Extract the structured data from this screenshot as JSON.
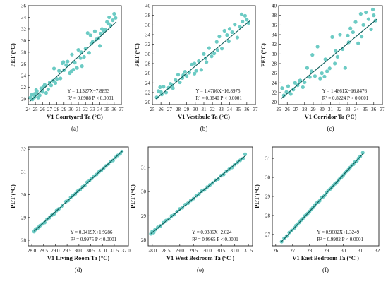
{
  "figure": {
    "colors": {
      "point": "#6ccbc4",
      "line": "#0c5a57",
      "frame": "#222222",
      "text": "#111111"
    }
  },
  "chart_data": [
    {
      "type": "scatter",
      "caption": "(a)",
      "xlabel": "V1 Courtyard Ta (°C)",
      "ylabel": "PET (°C)",
      "xticks": [
        24,
        25,
        26,
        27,
        28,
        29,
        30,
        31,
        32,
        33,
        34,
        35,
        36,
        37
      ],
      "yticks": [
        20,
        22,
        24,
        26,
        28,
        30,
        32,
        34,
        36
      ],
      "xlim": [
        24,
        37
      ],
      "ylim": [
        19,
        36
      ],
      "fit": {
        "slope": 1.1327,
        "intercept": -7.8853,
        "x_range": [
          24.2,
          36.3
        ]
      },
      "equation": "Y = 1.1327X−7.8853",
      "stats": "R² = 0.8988 P < 0.0001",
      "legend_position": "bottom-right",
      "x": [
        24.3,
        24.5,
        24.6,
        24.8,
        24.9,
        25.0,
        25.2,
        25.4,
        25.6,
        25.8,
        26.0,
        26.2,
        26.5,
        26.8,
        27.0,
        27.2,
        27.5,
        27.8,
        28.0,
        28.3,
        28.5,
        28.8,
        29.0,
        29.3,
        29.5,
        29.8,
        30.0,
        30.3,
        30.5,
        30.8,
        31.0,
        31.3,
        31.5,
        31.8,
        32.0,
        32.3,
        32.5,
        32.8,
        33.0,
        33.3,
        33.5,
        33.8,
        34.0,
        34.3,
        34.5,
        34.8,
        35.0,
        35.3,
        35.5,
        35.8,
        36.0,
        36.2,
        25.1,
        26.3,
        27.6,
        28.9,
        30.1,
        31.4,
        32.7,
        34.1,
        35.2
      ],
      "y": [
        20.2,
        20.7,
        19.9,
        20.8,
        20.3,
        20.9,
        21.3,
        20.2,
        20.6,
        21.8,
        21.2,
        22.1,
        21.0,
        21.6,
        22.8,
        22.3,
        23.1,
        22.7,
        23.4,
        24.8,
        23.5,
        26.1,
        24.9,
        25.8,
        26.4,
        24.4,
        24.7,
        25.0,
        26.2,
        25.3,
        28.4,
        27.0,
        25.6,
        27.2,
        28.6,
        31.3,
        27.9,
        29.5,
        29.8,
        31.6,
        30.2,
        30.4,
        29.1,
        32.0,
        31.7,
        31.9,
        33.2,
        34.0,
        32.6,
        33.5,
        34.6,
        33.9,
        21.5,
        22.4,
        25.2,
        26.3,
        27.6,
        28.0,
        30.9,
        31.2,
        32.9
      ]
    },
    {
      "type": "scatter",
      "caption": "(b)",
      "xlabel": "V1 Vestibule Ta (°C)",
      "ylabel": "PET (°C)",
      "xticks": [
        25,
        26,
        27,
        28,
        29,
        30,
        31,
        32,
        33,
        34,
        35,
        36,
        37
      ],
      "yticks": [
        20,
        22,
        24,
        26,
        28,
        30,
        32,
        34,
        36,
        38,
        40
      ],
      "xlim": [
        25,
        37
      ],
      "ylim": [
        19.5,
        40
      ],
      "fit": {
        "slope": 1.4786,
        "intercept": -16.8975,
        "x_range": [
          25.4,
          36.4
        ]
      },
      "equation": "Y = 1.4786X−16.8975",
      "stats": "R² = 0.8840 P < 0.0001",
      "legend_position": "bottom-right",
      "x": [
        25.5,
        25.7,
        25.9,
        26.1,
        26.3,
        26.6,
        26.9,
        27.1,
        27.4,
        27.7,
        28.0,
        28.2,
        28.5,
        28.8,
        29.0,
        29.3,
        29.6,
        29.9,
        30.1,
        30.4,
        30.7,
        31.0,
        31.3,
        31.6,
        31.9,
        32.2,
        32.5,
        32.8,
        33.1,
        33.4,
        33.7,
        34.0,
        34.3,
        34.6,
        34.9,
        35.2,
        35.5,
        35.8,
        36.0,
        36.2,
        26.0,
        27.3,
        28.6,
        29.9,
        31.2,
        32.6,
        33.9,
        35.4
      ],
      "y": [
        21.0,
        22.3,
        23.1,
        21.6,
        23.2,
        22.0,
        23.0,
        23.8,
        22.9,
        24.6,
        25.7,
        24.1,
        25.0,
        26.3,
        25.4,
        26.1,
        27.8,
        25.9,
        26.5,
        28.5,
        26.7,
        30.0,
        28.3,
        31.2,
        29.5,
        30.1,
        32.5,
        33.6,
        31.1,
        34.8,
        33.9,
        35.2,
        34.5,
        36.1,
        33.4,
        35.6,
        36.7,
        37.9,
        37.1,
        36.4,
        22.1,
        23.5,
        25.6,
        28.0,
        29.1,
        30.8,
        32.6,
        38.2
      ]
    },
    {
      "type": "scatter",
      "caption": "(c)",
      "xlabel": "V1 Corridor Ta (°C)",
      "ylabel": "PET (°C)",
      "xticks": [
        25,
        26,
        27,
        28,
        29,
        30,
        31,
        32,
        33,
        34,
        35,
        36,
        37
      ],
      "yticks": [
        20,
        22,
        24,
        26,
        28,
        30,
        32,
        34,
        36,
        38,
        40
      ],
      "xlim": [
        25,
        37
      ],
      "ylim": [
        19.5,
        40
      ],
      "fit": {
        "slope": 1.4861,
        "intercept": -16.8476,
        "x_range": [
          25.3,
          36.4
        ]
      },
      "equation": "Y = 1.4861X−16.8476",
      "stats": "R² = 0.8224 P < 0.0001",
      "legend_position": "bottom-right",
      "x": [
        25.4,
        25.6,
        25.9,
        26.1,
        26.4,
        26.7,
        26.9,
        27.2,
        27.5,
        27.8,
        28.0,
        28.3,
        28.6,
        28.9,
        29.2,
        29.5,
        29.8,
        30.0,
        30.3,
        30.6,
        30.9,
        31.2,
        31.5,
        31.8,
        32.1,
        32.4,
        32.7,
        33.0,
        33.3,
        33.6,
        33.9,
        34.2,
        34.5,
        34.8,
        35.1,
        35.4,
        35.7,
        36.0,
        36.2,
        26.3,
        27.4,
        28.8,
        30.4,
        31.6,
        33.1,
        34.6,
        35.9
      ],
      "y": [
        22.9,
        21.4,
        22.1,
        23.3,
        21.7,
        22.6,
        24.0,
        23.5,
        24.5,
        23.1,
        24.1,
        27.1,
        25.2,
        29.8,
        25.4,
        31.5,
        24.9,
        26.0,
        25.3,
        26.4,
        27.0,
        33.5,
        28.0,
        29.4,
        34.0,
        31.0,
        27.1,
        33.8,
        35.3,
        34.5,
        36.6,
        32.2,
        38.3,
        36.0,
        38.6,
        37.2,
        35.1,
        38.0,
        36.9,
        21.9,
        24.4,
        26.4,
        28.9,
        30.6,
        32.4,
        33.6,
        39.2
      ]
    },
    {
      "type": "scatter",
      "caption": "(d)",
      "xlabel": "V1 Living Room Ta (°C)",
      "ylabel": "PET (°C)",
      "xticks": [
        28.0,
        28.5,
        29.0,
        29.5,
        30.0,
        30.5,
        31.0,
        31.5,
        32.0
      ],
      "yticks": [
        28,
        29,
        30,
        31,
        32
      ],
      "xlim": [
        27.85,
        32.1
      ],
      "ylim": [
        27.75,
        32.1
      ],
      "fit": {
        "slope": 0.9419,
        "intercept": 1.9286,
        "x_range": [
          28.1,
          31.85
        ]
      },
      "equation": "Y = 0.9419X+1.9286",
      "stats": "R² = 0.9975 P < 0.0001",
      "legend_position": "bottom-right",
      "x": [
        28.1,
        28.15,
        28.2,
        28.25,
        28.3,
        28.35,
        28.45,
        28.55,
        28.65,
        28.75,
        28.85,
        28.95,
        29.05,
        29.15,
        29.3,
        29.45,
        29.55,
        29.65,
        29.75,
        29.85,
        29.95,
        30.05,
        30.15,
        30.25,
        30.35,
        30.45,
        30.55,
        30.65,
        30.75,
        30.85,
        30.95,
        31.05,
        31.15,
        31.25,
        31.35,
        31.45,
        31.55,
        31.65,
        31.75,
        31.82
      ],
      "y": [
        28.38,
        28.46,
        28.5,
        28.53,
        28.58,
        28.64,
        28.72,
        28.78,
        28.92,
        28.99,
        29.1,
        29.16,
        29.3,
        29.38,
        29.51,
        29.7,
        29.75,
        29.88,
        29.97,
        30.04,
        30.16,
        30.22,
        30.34,
        30.41,
        30.55,
        30.63,
        30.72,
        30.82,
        30.89,
        31.0,
        31.07,
        31.17,
        31.27,
        31.35,
        31.46,
        31.51,
        31.64,
        31.73,
        31.8,
        31.9
      ]
    },
    {
      "type": "scatter",
      "caption": "(e)",
      "xlabel": "V1 West Bedroom Ta (°C )",
      "ylabel": "PET (°C)",
      "xticks": [
        28.0,
        28.5,
        29.0,
        29.5,
        30.0,
        30.5,
        31.0,
        31.5
      ],
      "yticks": [
        28,
        29,
        30,
        31
      ],
      "xlim": [
        27.85,
        31.65
      ],
      "ylim": [
        27.75,
        31.85
      ],
      "fit": {
        "slope": 0.9386,
        "intercept": 2.024,
        "x_range": [
          27.95,
          31.4
        ]
      },
      "equation": "Y = 0.9386X+2.024",
      "stats": "R² = 0.9965 P < 0.0001",
      "legend_position": "bottom-right",
      "x": [
        27.95,
        28.0,
        28.05,
        28.1,
        28.2,
        28.3,
        28.4,
        28.5,
        28.6,
        28.7,
        28.8,
        28.9,
        29.0,
        29.1,
        29.2,
        29.3,
        29.4,
        29.5,
        29.6,
        29.7,
        29.8,
        29.9,
        30.0,
        30.1,
        30.2,
        30.3,
        30.4,
        30.5,
        30.6,
        30.7,
        30.8,
        30.9,
        31.0,
        31.1,
        31.2,
        31.3,
        31.38
      ],
      "y": [
        28.25,
        28.35,
        28.3,
        28.42,
        28.52,
        28.58,
        28.71,
        28.8,
        28.86,
        28.99,
        29.05,
        29.17,
        29.28,
        29.33,
        29.46,
        29.52,
        29.63,
        29.71,
        29.83,
        29.9,
        30.02,
        30.07,
        30.19,
        30.28,
        30.36,
        30.47,
        30.52,
        30.66,
        30.71,
        30.84,
        30.93,
        31.0,
        31.12,
        31.21,
        31.3,
        31.37,
        31.55
      ]
    },
    {
      "type": "scatter",
      "caption": "(f)",
      "xlabel": "V1 East Bedroom Ta (°C )",
      "ylabel": "PET (°C)",
      "xticks": [
        26,
        27,
        28,
        29,
        30,
        31,
        32
      ],
      "yticks": [
        27,
        28,
        29,
        30,
        31
      ],
      "xlim": [
        25.8,
        32.1
      ],
      "ylim": [
        26.4,
        31.6
      ],
      "fit": {
        "slope": 0.9602,
        "intercept": 1.3249,
        "x_range": [
          26.3,
          31.2
        ]
      },
      "equation": "Y = 0.9602X+1.3249",
      "stats": "R² = 0.9982 P < 0.0001",
      "legend_position": "bottom-right",
      "x": [
        26.35,
        26.5,
        26.65,
        26.8,
        26.95,
        27.1,
        27.2,
        27.3,
        27.4,
        27.5,
        27.6,
        27.7,
        27.8,
        27.9,
        28.0,
        28.1,
        28.2,
        28.3,
        28.4,
        28.5,
        28.6,
        28.7,
        28.8,
        28.9,
        29.0,
        29.1,
        29.2,
        29.3,
        29.4,
        29.5,
        29.6,
        29.7,
        29.8,
        29.9,
        30.0,
        30.1,
        30.2,
        30.3,
        30.4,
        30.5,
        30.6,
        30.7,
        30.8,
        30.9,
        31.0,
        31.15
      ],
      "y": [
        26.62,
        26.8,
        26.91,
        27.1,
        27.21,
        27.34,
        27.47,
        27.55,
        27.64,
        27.75,
        27.83,
        27.96,
        28.03,
        28.11,
        28.21,
        28.33,
        28.41,
        28.52,
        28.64,
        28.7,
        28.77,
        28.93,
        28.98,
        29.06,
        29.2,
        29.3,
        29.37,
        29.47,
        29.57,
        29.66,
        29.73,
        29.85,
        29.94,
        30.02,
        30.12,
        30.24,
        30.33,
        30.41,
        30.52,
        30.63,
        30.69,
        30.82,
        30.86,
        31.0,
        31.11,
        31.3
      ]
    }
  ]
}
